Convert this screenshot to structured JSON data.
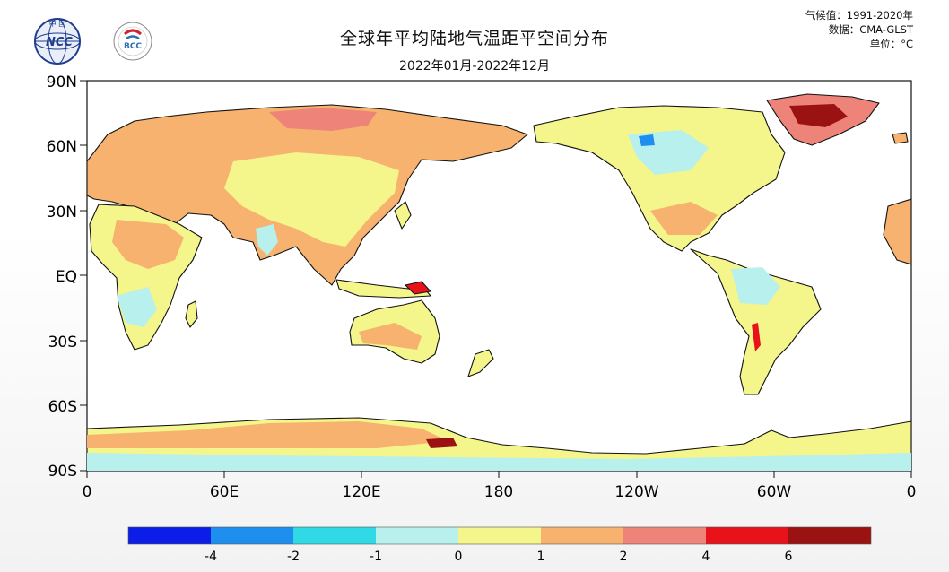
{
  "title": "全球年平均陆地气温距平空间分布",
  "subtitle": "2022年01月-2022年12月",
  "meta": {
    "climate_normal": "气候值：1991-2020年",
    "dataset": "数据：CMA-GLST",
    "unit": "单位：°C"
  },
  "logos": [
    {
      "name": "ncc-logo",
      "text": "NCC",
      "caption": "中 国"
    },
    {
      "name": "bcc-logo",
      "text": "BCC"
    }
  ],
  "axes": {
    "y_ticks": [
      "90N",
      "60N",
      "30N",
      "EQ",
      "30S",
      "60S",
      "90S"
    ],
    "x_ticks": [
      "0",
      "60E",
      "120E",
      "180",
      "120W",
      "60W",
      "0"
    ]
  },
  "colorbar": {
    "colors": [
      "#0b1de6",
      "#1f8fef",
      "#2fd9e6",
      "#b7f0ec",
      "#f4f58a",
      "#f6b26e",
      "#ee8479",
      "#e8131a",
      "#9b1212"
    ],
    "labels": [
      "-4",
      "-2",
      "-1",
      "0",
      "1",
      "2",
      "4",
      "6"
    ]
  },
  "map_colors": {
    "ocean": "#ffffff",
    "coast": "#111111"
  }
}
